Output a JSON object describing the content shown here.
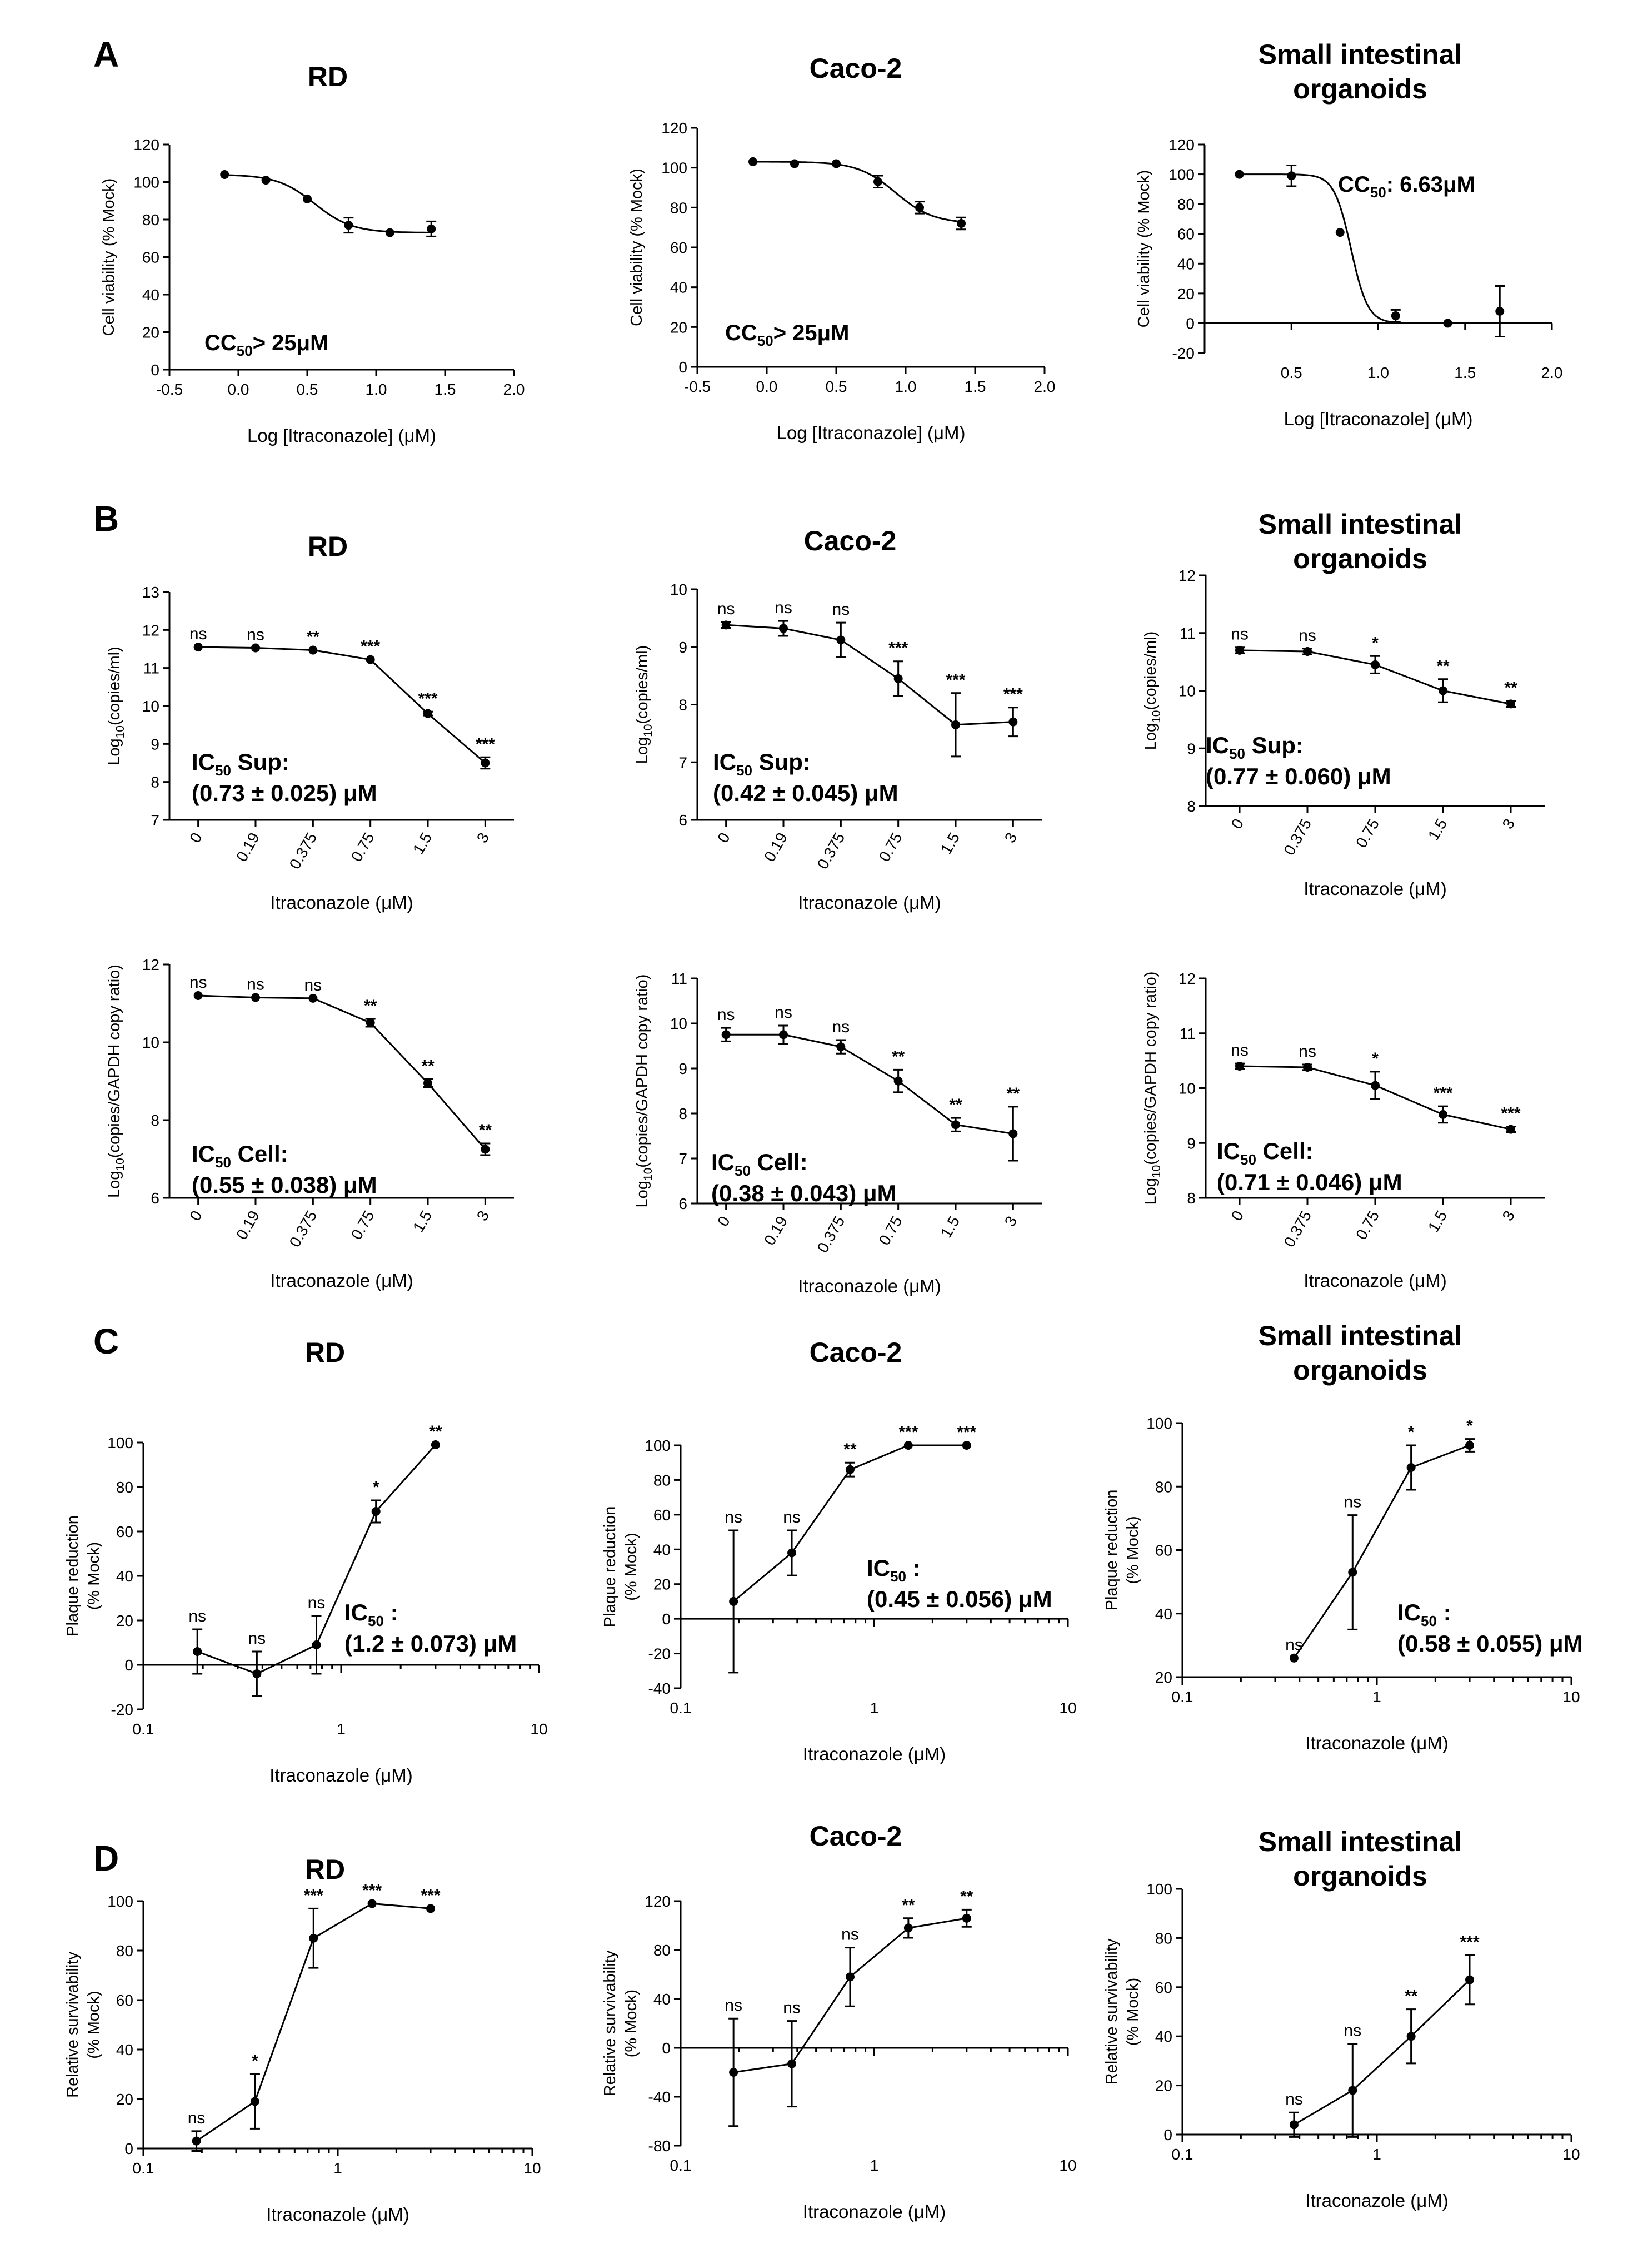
{
  "panel_labels": [
    "A",
    "B",
    "C",
    "D"
  ],
  "chart_data": [
    {
      "id": "A-RD",
      "panel": "A",
      "type": "line",
      "title": "RD",
      "xlabel": "Log [Itraconazole] (μM)",
      "ylabel": "Cell viability (% Mock)",
      "xlim": [
        -0.5,
        2.0
      ],
      "xticks": [
        "-0.5",
        "0.0",
        "0.5",
        "1.0",
        "1.5",
        "2.0"
      ],
      "ylim": [
        0,
        120
      ],
      "yticks": [
        "0",
        "20",
        "40",
        "60",
        "80",
        "100",
        "120"
      ],
      "x": [
        -0.1,
        0.2,
        0.5,
        0.8,
        1.1,
        1.4
      ],
      "y": [
        104,
        101,
        91,
        77,
        73,
        75
      ],
      "err": [
        0,
        0,
        0,
        4,
        0,
        4
      ],
      "fit": "sigmoid",
      "annotation": {
        "main": "CC",
        "sub": "50",
        "rest": "> 25μM"
      }
    },
    {
      "id": "A-Caco2",
      "panel": "A",
      "type": "line",
      "title": "Caco-2",
      "xlabel": "Log [Itraconazole] (μM)",
      "ylabel": "Cell viability (% Mock)",
      "xlim": [
        -0.5,
        2.0
      ],
      "xticks": [
        "-0.5",
        "0.0",
        "0.5",
        "1.0",
        "1.5",
        "2.0"
      ],
      "ylim": [
        0,
        120
      ],
      "yticks": [
        "0",
        "20",
        "40",
        "60",
        "80",
        "100",
        "120"
      ],
      "x": [
        -0.1,
        0.2,
        0.5,
        0.8,
        1.1,
        1.4
      ],
      "y": [
        103,
        102,
        102,
        93,
        80,
        72
      ],
      "err": [
        0,
        0,
        0,
        3,
        3,
        3
      ],
      "fit": "sigmoid",
      "annotation": {
        "main": "CC",
        "sub": "50",
        "rest": "> 25μM"
      }
    },
    {
      "id": "A-SIO",
      "panel": "A",
      "type": "line",
      "title": "Small intestinal organoids",
      "xlabel": "Log [Itraconazole] (μM)",
      "ylabel": "Cell viability (% Mock)",
      "xlim": [
        0,
        2.0
      ],
      "xticks": [
        "0.5",
        "1.0",
        "1.5",
        "2.0"
      ],
      "ylim": [
        -20,
        120
      ],
      "yticks": [
        "-20",
        "0",
        "20",
        "40",
        "60",
        "80",
        "100",
        "120"
      ],
      "x": [
        0.2,
        0.5,
        0.78,
        1.1,
        1.4,
        1.7
      ],
      "y": [
        100,
        99,
        61,
        5,
        0,
        8
      ],
      "err": [
        0,
        7,
        0,
        4,
        0,
        17
      ],
      "fit": "sigmoid",
      "annotation": {
        "main": "CC",
        "sub": "50",
        "rest": ": 6.63μM"
      }
    },
    {
      "id": "B-RD-sup",
      "panel": "B",
      "type": "line",
      "title": "RD",
      "xlabel": "Itraconazole (μM)",
      "ylabel": "Log10(copies/ml)",
      "categories": [
        "0",
        "0.19",
        "0.375",
        "0.75",
        "1.5",
        "3"
      ],
      "ylim": [
        7,
        13
      ],
      "yticks": [
        "7",
        "8",
        "9",
        "10",
        "11",
        "12",
        "13"
      ],
      "y": [
        11.55,
        11.53,
        11.47,
        11.22,
        9.8,
        8.5
      ],
      "err": [
        0,
        0,
        0,
        0,
        0.05,
        0.15
      ],
      "sig": [
        "ns",
        "ns",
        "**",
        "***",
        "***",
        "***"
      ],
      "annotation": {
        "main": "IC",
        "sub": "50",
        "rest": " Sup:",
        "line2": "(0.73 ± 0.025) μM"
      }
    },
    {
      "id": "B-Caco2-sup",
      "panel": "B",
      "type": "line",
      "title": "Caco-2",
      "xlabel": "Itraconazole (μM)",
      "ylabel": "Log10(copies/ml)",
      "categories": [
        "0",
        "0.19",
        "0.375",
        "0.75",
        "1.5",
        "3"
      ],
      "ylim": [
        6,
        10
      ],
      "yticks": [
        "6",
        "7",
        "8",
        "9",
        "10"
      ],
      "y": [
        9.38,
        9.32,
        9.12,
        8.45,
        7.65,
        7.7
      ],
      "err": [
        0.05,
        0.13,
        0.3,
        0.3,
        0.55,
        0.25
      ],
      "sig": [
        "ns",
        "ns",
        "ns",
        "***",
        "***",
        "***"
      ],
      "annotation": {
        "main": "IC",
        "sub": "50",
        "rest": " Sup:",
        "line2": "(0.42 ± 0.045) μM"
      }
    },
    {
      "id": "B-SIO-sup",
      "panel": "B",
      "type": "line",
      "title": "Small intestinal organoids",
      "xlabel": "Itraconazole (μM)",
      "ylabel": "Log10(copies/ml)",
      "categories": [
        "0",
        "0.375",
        "0.75",
        "1.5",
        "3"
      ],
      "ylim": [
        8,
        12
      ],
      "yticks": [
        "8",
        "9",
        "10",
        "11",
        "12"
      ],
      "y": [
        10.7,
        10.68,
        10.45,
        10.0,
        9.77
      ],
      "err": [
        0.05,
        0.05,
        0.15,
        0.2,
        0.05
      ],
      "sig": [
        "ns",
        "ns",
        "*",
        "**",
        "**"
      ],
      "annotation": {
        "main": "IC",
        "sub": "50",
        "rest": " Sup:",
        "line2": "(0.77 ± 0.060) μM"
      }
    },
    {
      "id": "B-RD-cell",
      "panel": "B",
      "type": "line",
      "title": "",
      "xlabel": "Itraconazole (μM)",
      "ylabel": "Log10(copies/GAPDH copy ratio)",
      "categories": [
        "0",
        "0.19",
        "0.375",
        "0.75",
        "1.5",
        "3"
      ],
      "ylim": [
        6,
        12
      ],
      "yticks": [
        "6",
        "8",
        "10",
        "12"
      ],
      "y": [
        11.2,
        11.15,
        11.13,
        10.5,
        8.95,
        7.25
      ],
      "err": [
        0,
        0,
        0,
        0.1,
        0.1,
        0.15
      ],
      "sig": [
        "ns",
        "ns",
        "ns",
        "**",
        "**",
        "**"
      ],
      "annotation": {
        "main": "IC",
        "sub": "50",
        "rest": " Cell:",
        "line2": "(0.55 ± 0.038) μM"
      }
    },
    {
      "id": "B-Caco2-cell",
      "panel": "B",
      "type": "line",
      "title": "",
      "xlabel": "Itraconazole (μM)",
      "ylabel": "Log10(copies/GAPDH copy ratio)",
      "categories": [
        "0",
        "0.19",
        "0.375",
        "0.75",
        "1.5",
        "3"
      ],
      "ylim": [
        6,
        11
      ],
      "yticks": [
        "6",
        "7",
        "8",
        "9",
        "10",
        "11"
      ],
      "y": [
        9.75,
        9.75,
        9.48,
        8.72,
        7.75,
        7.55
      ],
      "err": [
        0.15,
        0.2,
        0.15,
        0.25,
        0.15,
        0.6
      ],
      "sig": [
        "ns",
        "ns",
        "ns",
        "**",
        "**",
        "**"
      ],
      "annotation": {
        "main": "IC",
        "sub": "50",
        "rest": " Cell:",
        "line2": "(0.38 ± 0.043) μM"
      }
    },
    {
      "id": "B-SIO-cell",
      "panel": "B",
      "type": "line",
      "title": "",
      "xlabel": "Itraconazole (μM)",
      "ylabel": "Log10(copies/GAPDH copy ratio)",
      "categories": [
        "0",
        "0.375",
        "0.75",
        "1.5",
        "3"
      ],
      "ylim": [
        8,
        12
      ],
      "yticks": [
        "8",
        "9",
        "10",
        "11",
        "12"
      ],
      "y": [
        10.4,
        10.38,
        10.05,
        9.52,
        9.25
      ],
      "err": [
        0.05,
        0.05,
        0.25,
        0.15,
        0.05
      ],
      "sig": [
        "ns",
        "ns",
        "*",
        "***",
        "***"
      ],
      "annotation": {
        "main": "IC",
        "sub": "50",
        "rest": " Cell:",
        "line2": "(0.71 ± 0.046) μM"
      }
    },
    {
      "id": "C-RD",
      "panel": "C",
      "type": "line",
      "xscale": "log",
      "title": "RD",
      "xlabel": "Itraconazole (μM)",
      "ylabel": "Plaque reduction (% Mock)",
      "xlim": [
        0.1,
        10
      ],
      "xticks": [
        "0.1",
        "1",
        "10"
      ],
      "ylim": [
        -20,
        100
      ],
      "yticks": [
        "-20",
        "0",
        "20",
        "40",
        "60",
        "80",
        "100"
      ],
      "x": [
        0.1875,
        0.375,
        0.75,
        1.5,
        3
      ],
      "y": [
        6,
        -4,
        9,
        69,
        99
      ],
      "err": [
        10,
        10,
        13,
        5,
        0
      ],
      "sig": [
        "ns",
        "ns",
        "ns",
        "*",
        "**"
      ],
      "annotation": {
        "main": "IC",
        "sub": "50",
        "rest": " :",
        "line2": "(1.2 ± 0.073) μM"
      }
    },
    {
      "id": "C-Caco2",
      "panel": "C",
      "type": "line",
      "xscale": "log",
      "title": "Caco-2",
      "xlabel": "Itraconazole (μM)",
      "ylabel": "Plaque reduction (% Mock)",
      "xlim": [
        0.1,
        10
      ],
      "xticks": [
        "0.1",
        "1",
        "10"
      ],
      "ylim": [
        -40,
        100
      ],
      "yticks": [
        "-40",
        "-20",
        "0",
        "20",
        "40",
        "60",
        "80",
        "100"
      ],
      "x": [
        0.1875,
        0.375,
        0.75,
        1.5,
        3
      ],
      "y": [
        10,
        38,
        86,
        100,
        100
      ],
      "err": [
        41,
        13,
        4,
        0,
        0
      ],
      "sig": [
        "ns",
        "ns",
        "**",
        "***",
        "***"
      ],
      "annotation": {
        "main": "IC",
        "sub": "50",
        "rest": " :",
        "line2": "(0.45 ± 0.056) μM"
      }
    },
    {
      "id": "C-SIO",
      "panel": "C",
      "type": "line",
      "xscale": "log",
      "title": "Small intestinal organoids",
      "xlabel": "Itraconazole (μM)",
      "ylabel": "Plaque reduction (% Mock)",
      "xlim": [
        0.1,
        10
      ],
      "xticks": [
        "0.1",
        "1",
        "10"
      ],
      "ylim": [
        20,
        100
      ],
      "yticks": [
        "20",
        "40",
        "60",
        "80",
        "100"
      ],
      "x": [
        0.375,
        0.75,
        1.5,
        3
      ],
      "y": [
        26,
        53,
        86,
        93
      ],
      "err": [
        0,
        18,
        7,
        2
      ],
      "sig": [
        "ns",
        "ns",
        "*",
        "*"
      ],
      "annotation": {
        "main": "IC",
        "sub": "50",
        "rest": " :",
        "line2": "(0.58 ± 0.055) μM"
      }
    },
    {
      "id": "D-RD",
      "panel": "D",
      "type": "line",
      "xscale": "log",
      "title": "RD",
      "xlabel": "Itraconazole (μM)",
      "ylabel": "Relative survivability (% Mock)",
      "xlim": [
        0.1,
        10
      ],
      "xticks": [
        "0.1",
        "1",
        "10"
      ],
      "ylim": [
        0,
        100
      ],
      "yticks": [
        "0",
        "20",
        "40",
        "60",
        "80",
        "100"
      ],
      "x": [
        0.1875,
        0.375,
        0.75,
        1.5,
        3
      ],
      "y": [
        3,
        19,
        85,
        99,
        97
      ],
      "err": [
        4,
        11,
        12,
        0,
        0
      ],
      "sig": [
        "ns",
        "*",
        "***",
        "***",
        "***"
      ]
    },
    {
      "id": "D-Caco2",
      "panel": "D",
      "type": "line",
      "xscale": "log",
      "title": "Caco-2",
      "xlabel": "Itraconazole (μM)",
      "ylabel": "Relative survivability (% Mock)",
      "xlim": [
        0.1,
        10
      ],
      "xticks": [
        "0.1",
        "1",
        "10"
      ],
      "ylim": [
        -80,
        120
      ],
      "yticks": [
        "-80",
        "-40",
        "0",
        "40",
        "80",
        "120"
      ],
      "x": [
        0.1875,
        0.375,
        0.75,
        1.5,
        3
      ],
      "y": [
        -20,
        -13,
        58,
        98,
        106
      ],
      "err": [
        44,
        35,
        24,
        8,
        7
      ],
      "sig": [
        "ns",
        "ns",
        "ns",
        "**",
        "**"
      ]
    },
    {
      "id": "D-SIO",
      "panel": "D",
      "type": "line",
      "xscale": "log",
      "title": "Small intestinal organoids",
      "xlabel": "Itraconazole (μM)",
      "ylabel": "Relative survivability (% Mock)",
      "xlim": [
        0.1,
        10
      ],
      "xticks": [
        "0.1",
        "1",
        "10"
      ],
      "ylim": [
        0,
        100
      ],
      "yticks": [
        "0",
        "20",
        "40",
        "60",
        "80",
        "100"
      ],
      "x": [
        0.375,
        0.75,
        1.5,
        3
      ],
      "y": [
        4,
        18,
        40,
        63
      ],
      "err": [
        5,
        19,
        11,
        10
      ],
      "sig": [
        "ns",
        "ns",
        "**",
        "***"
      ]
    }
  ]
}
